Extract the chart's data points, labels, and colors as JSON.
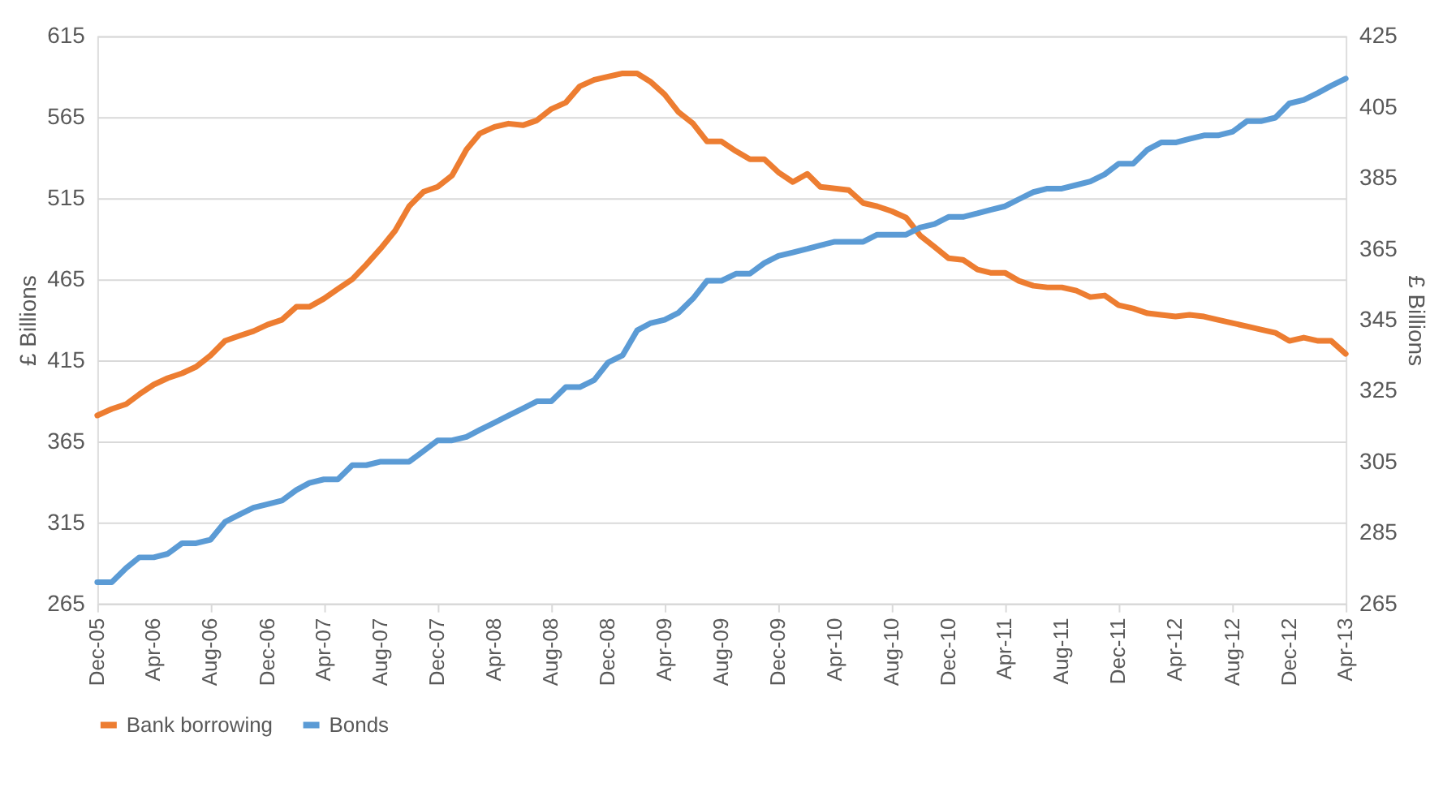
{
  "chart_data": {
    "type": "line",
    "ylabel": "£ Billions",
    "y2label": "£ Billions",
    "x": [
      "2005-12",
      "2006-01",
      "2006-02",
      "2006-03",
      "2006-04",
      "2006-05",
      "2006-06",
      "2006-07",
      "2006-08",
      "2006-09",
      "2006-10",
      "2006-11",
      "2006-12",
      "2007-01",
      "2007-02",
      "2007-03",
      "2007-04",
      "2007-05",
      "2007-06",
      "2007-07",
      "2007-08",
      "2007-09",
      "2007-10",
      "2007-11",
      "2007-12",
      "2008-01",
      "2008-02",
      "2008-03",
      "2008-04",
      "2008-05",
      "2008-06",
      "2008-07",
      "2008-08",
      "2008-09",
      "2008-10",
      "2008-11",
      "2008-12",
      "2009-01",
      "2009-02",
      "2009-03",
      "2009-04",
      "2009-05",
      "2009-06",
      "2009-07",
      "2009-08",
      "2009-09",
      "2009-10",
      "2009-11",
      "2009-12",
      "2010-01",
      "2010-02",
      "2010-03",
      "2010-04",
      "2010-05",
      "2010-06",
      "2010-07",
      "2010-08",
      "2010-09",
      "2010-10",
      "2010-11",
      "2010-12",
      "2011-01",
      "2011-02",
      "2011-03",
      "2011-04",
      "2011-05",
      "2011-06",
      "2011-07",
      "2011-08",
      "2011-09",
      "2011-10",
      "2011-11",
      "2011-12",
      "2012-01",
      "2012-02",
      "2012-03",
      "2012-04",
      "2012-05",
      "2012-06",
      "2012-07",
      "2012-08",
      "2012-09",
      "2012-10",
      "2012-11",
      "2012-12",
      "2013-01",
      "2013-02",
      "2013-03",
      "2013-04"
    ],
    "series": [
      {
        "name": "Bank borrowing",
        "color": "#ed7d31",
        "values": [
          381,
          385,
          388,
          394,
          400,
          404,
          407,
          411,
          418,
          427,
          430,
          433,
          437,
          440,
          448,
          448,
          453,
          459,
          465,
          474,
          484,
          495,
          510,
          519,
          522,
          529,
          545,
          555,
          559,
          561,
          560,
          563,
          570,
          574,
          584,
          588,
          590,
          592,
          592,
          587,
          579,
          568,
          561,
          550,
          550,
          544,
          539,
          539,
          531,
          525,
          530,
          522,
          521,
          520,
          512,
          510,
          507,
          503,
          492,
          485,
          478,
          477,
          471,
          469,
          469,
          464,
          461,
          460,
          460,
          458,
          454,
          455,
          449,
          447,
          444,
          443,
          442,
          443,
          442,
          440,
          438,
          436,
          434,
          432,
          427,
          429,
          427,
          427,
          419
        ]
      },
      {
        "name": "Bonds",
        "color": "#5b9bd5",
        "axis": "y2",
        "values": [
          271,
          271,
          275,
          278,
          278,
          279,
          282,
          282,
          283,
          288,
          290,
          292,
          293,
          294,
          297,
          299,
          300,
          300,
          304,
          304,
          305,
          305,
          305,
          308,
          311,
          311,
          312,
          314,
          316,
          318,
          320,
          322,
          322,
          326,
          326,
          328,
          333,
          335,
          342,
          344,
          345,
          347,
          351,
          356,
          356,
          358,
          358,
          361,
          363,
          364,
          365,
          366,
          367,
          367,
          367,
          369,
          369,
          369,
          371,
          372,
          374,
          374,
          375,
          376,
          377,
          379,
          381,
          382,
          382,
          383,
          384,
          386,
          389,
          389,
          393,
          395,
          395,
          396,
          397,
          397,
          398,
          401,
          401,
          402,
          406,
          407,
          409,
          411,
          413
        ]
      }
    ],
    "xlim": [
      "2005-12",
      "2013-04"
    ],
    "xticks": [
      {
        "value": "2005-12",
        "label": "Dec-05"
      },
      {
        "value": "2006-04",
        "label": "Apr-06"
      },
      {
        "value": "2006-08",
        "label": "Aug-06"
      },
      {
        "value": "2006-12",
        "label": "Dec-06"
      },
      {
        "value": "2007-04",
        "label": "Apr-07"
      },
      {
        "value": "2007-08",
        "label": "Aug-07"
      },
      {
        "value": "2007-12",
        "label": "Dec-07"
      },
      {
        "value": "2008-04",
        "label": "Apr-08"
      },
      {
        "value": "2008-08",
        "label": "Aug-08"
      },
      {
        "value": "2008-12",
        "label": "Dec-08"
      },
      {
        "value": "2009-04",
        "label": "Apr-09"
      },
      {
        "value": "2009-08",
        "label": "Aug-09"
      },
      {
        "value": "2009-12",
        "label": "Dec-09"
      },
      {
        "value": "2010-04",
        "label": "Apr-10"
      },
      {
        "value": "2010-08",
        "label": "Aug-10"
      },
      {
        "value": "2010-12",
        "label": "Dec-10"
      },
      {
        "value": "2011-04",
        "label": "Apr-11"
      },
      {
        "value": "2011-08",
        "label": "Aug-11"
      },
      {
        "value": "2011-12",
        "label": "Dec-11"
      },
      {
        "value": "2012-04",
        "label": "Apr-12"
      },
      {
        "value": "2012-08",
        "label": "Aug-12"
      },
      {
        "value": "2012-12",
        "label": "Dec-12"
      },
      {
        "value": "2013-04",
        "label": "Apr-13"
      }
    ],
    "ylim": [
      265,
      615
    ],
    "yticks": [
      265,
      315,
      365,
      415,
      465,
      515,
      565,
      615
    ],
    "y2lim": [
      265,
      425
    ],
    "y2ticks": [
      265,
      285,
      305,
      325,
      345,
      365,
      385,
      405,
      425
    ],
    "grid": "y",
    "legend": "bottom",
    "marker": "none",
    "line_style": "solid"
  }
}
